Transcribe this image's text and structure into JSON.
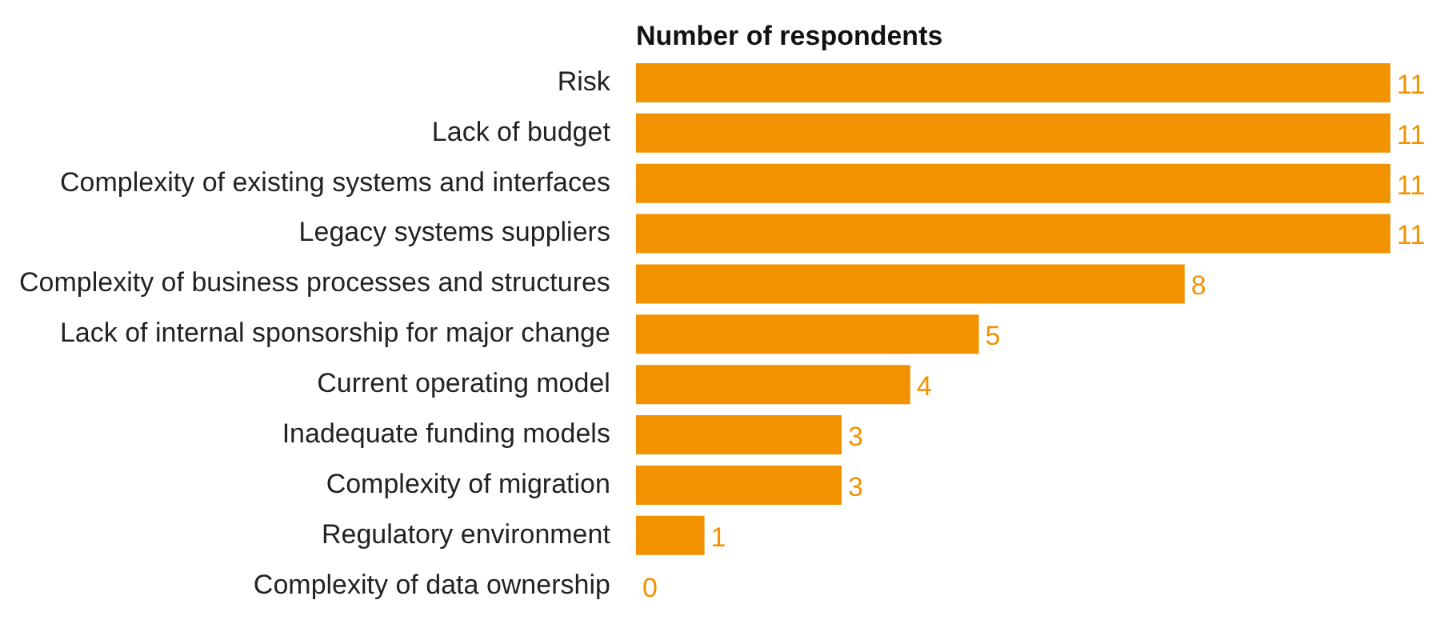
{
  "chart_data": {
    "type": "bar",
    "orientation": "horizontal",
    "title": "Number of respondents",
    "categories": [
      "Risk",
      "Lack of budget",
      "Complexity of existing systems and interfaces",
      "Legacy systems suppliers",
      "Complexity of business processes and structures",
      "Lack of internal sponsorship for major change",
      "Current operating model",
      "Inadequate funding models",
      "Complexity of migration",
      "Regulatory environment",
      "Complexity of data ownership"
    ],
    "values": [
      11,
      11,
      11,
      11,
      8,
      5,
      4,
      3,
      3,
      1,
      0
    ],
    "color": "#f39200",
    "data_labels": true
  }
}
